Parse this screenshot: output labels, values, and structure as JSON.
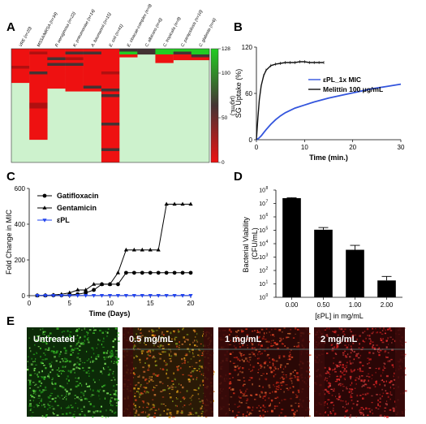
{
  "panel_letters": [
    "A",
    "B",
    "C",
    "D",
    "E"
  ],
  "chart_data": [
    {
      "panel": "A",
      "type": "heatmap",
      "columns": [
        "VRE (n=20)",
        "MSSA/MRSA (n=34)",
        "P. aeruginosa (n=22)",
        "K. pneumoniae (n=14)",
        "A. baumannii (n=15)",
        "E. coli (n=41)",
        "E. cloacae-complex (n=9)",
        "C. albicans (n=6)",
        "C. tropicalis (n=9)",
        "C. parapsilosis (n=10)",
        "C. glabrata (n=6)"
      ],
      "colorbar": {
        "ticks": [
          "128",
          "100",
          "50",
          "0"
        ],
        "label": "(μg/mL)",
        "range": [
          0,
          128
        ]
      },
      "palette": {
        "high": "#22cc22",
        "mid": "#443333",
        "low": "#ee1111",
        "none": "#cdf2cd"
      },
      "fill_fraction": [
        0.31,
        0.8,
        0.34,
        0.37,
        0.37,
        1.0,
        0.07,
        0.05,
        0.12,
        0.11,
        0.09
      ]
    },
    {
      "panel": "B",
      "type": "line",
      "ylabel": "SG Uptake (%)",
      "xlabel": "Time (min.)",
      "xlim": [
        0,
        30
      ],
      "ylim": [
        0,
        120
      ],
      "xticks": [
        "0",
        "10",
        "20",
        "30"
      ],
      "yticks": [
        "0",
        "60",
        "120"
      ],
      "series": [
        {
          "name": "εPL_1x MIC",
          "color": "#3355dd",
          "x": [
            0,
            0.5,
            1,
            1.5,
            2,
            3,
            4,
            5,
            6,
            8,
            10,
            12,
            15,
            18,
            21,
            24,
            27,
            30
          ],
          "y": [
            0,
            2,
            5,
            9,
            13,
            20,
            26,
            31,
            35,
            41,
            45,
            49,
            54,
            58,
            62,
            66,
            69,
            72
          ]
        },
        {
          "name": "Melittin 100 μg/mL",
          "color": "#111111",
          "x": [
            0,
            0.3,
            0.6,
            1,
            1.5,
            2,
            3,
            4,
            5,
            6,
            7,
            8,
            9,
            10,
            11,
            12,
            13,
            14
          ],
          "y": [
            0,
            28,
            52,
            70,
            83,
            90,
            96,
            98,
            99,
            100,
            100,
            100,
            101,
            101,
            100,
            100,
            100,
            100
          ]
        }
      ]
    },
    {
      "panel": "C",
      "type": "line",
      "ylabel": "Fold Change in MIC",
      "xlabel": "Time (Days)",
      "xlim": [
        0,
        20
      ],
      "ylim": [
        0,
        600
      ],
      "xticks": [
        "0",
        "5",
        "10",
        "15",
        "20"
      ],
      "yticks": [
        "0",
        "200",
        "400",
        "600"
      ],
      "series": [
        {
          "name": "Gatifloxacin",
          "marker": "circle",
          "color": "#000000",
          "x": [
            1,
            2,
            3,
            4,
            5,
            6,
            7,
            8,
            9,
            10,
            11,
            12,
            13,
            14,
            15,
            16,
            17,
            18,
            19,
            20
          ],
          "y": [
            1,
            1,
            2,
            2,
            4,
            8,
            16,
            32,
            64,
            64,
            64,
            128,
            128,
            128,
            128,
            128,
            128,
            128,
            128,
            128
          ]
        },
        {
          "name": "Gentamicin",
          "marker": "triangle",
          "color": "#000000",
          "x": [
            1,
            2,
            3,
            4,
            5,
            6,
            7,
            8,
            9,
            10,
            11,
            12,
            13,
            14,
            15,
            16,
            17,
            18,
            19,
            20
          ],
          "y": [
            1,
            2,
            4,
            8,
            16,
            32,
            32,
            64,
            64,
            64,
            128,
            256,
            256,
            256,
            256,
            256,
            512,
            512,
            512,
            512
          ]
        },
        {
          "name": "εPL",
          "marker": "triangle-down",
          "color": "#2244ee",
          "x": [
            1,
            2,
            3,
            4,
            5,
            6,
            7,
            8,
            9,
            10,
            11,
            12,
            13,
            14,
            15,
            16,
            17,
            18,
            19,
            20
          ],
          "y": [
            1,
            1,
            1,
            1,
            1,
            1,
            1,
            1,
            1,
            1,
            1,
            1,
            1,
            1,
            1,
            1,
            1,
            1,
            1,
            1
          ]
        }
      ]
    },
    {
      "panel": "D",
      "type": "bar",
      "ylabel": "Bacterial Viability (CFU/mL)",
      "xlabel": "[εPL] in mg/mL",
      "categories": [
        "0.00",
        "0.50",
        "1.00",
        "2.00"
      ],
      "values": [
        25000000,
        110000,
        3500,
        18
      ],
      "errors": [
        2000000,
        50000,
        4000,
        18
      ],
      "yscale": "log",
      "ylim_exp": [
        0,
        8
      ],
      "ytick_exps": [
        0,
        1,
        2,
        3,
        4,
        5,
        6,
        7,
        8
      ]
    }
  ],
  "panel_e": {
    "images": [
      {
        "label": "Untreated",
        "base": "#0c2a08",
        "dots": [
          "#3fbf2a",
          "#7be05a",
          "#1f8f18"
        ]
      },
      {
        "label": "0.5 mg/mL",
        "base": "#2a1a06",
        "dots": [
          "#d04018",
          "#e0a018",
          "#7a8a18",
          "#c07030"
        ]
      },
      {
        "label": "1 mg/mL",
        "base": "#2a0806",
        "dots": [
          "#d02a18",
          "#e04a28",
          "#a01a10",
          "#c06030"
        ]
      },
      {
        "label": "2 mg/mL",
        "base": "#2a0606",
        "dots": [
          "#d02020",
          "#e03030",
          "#b01818",
          "#c04040"
        ]
      }
    ]
  }
}
